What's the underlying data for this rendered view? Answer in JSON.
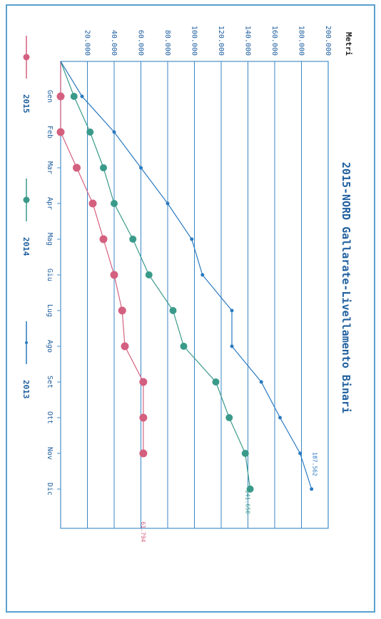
{
  "chart_data": {
    "type": "line",
    "title": "2015-NORD Gallarate-Livellamento Binari",
    "ylabel": "Metri",
    "xlabel": "",
    "categories": [
      "Gen",
      "Feb",
      "Mar",
      "Apr",
      "Mag",
      "Giu",
      "Lug",
      "Ago",
      "Set",
      "Ott",
      "Nov",
      "Dic"
    ],
    "yticks": [
      "20.000",
      "40.000",
      "60.000",
      "80.000",
      "100.000",
      "120.000",
      "140.000",
      "160.000",
      "180.000",
      "200.000"
    ],
    "ylim": [
      0,
      200000
    ],
    "grid": true,
    "legend_position": "bottom",
    "series": [
      {
        "name": "2015",
        "color": "#d4607f",
        "marker": "circle",
        "values": [
          0,
          0,
          12000,
          24000,
          32000,
          40000,
          46000,
          48000,
          61794,
          61794,
          61794,
          null
        ],
        "end_label": "61.794"
      },
      {
        "name": "2014",
        "color": "#3a9a8a",
        "marker": "circle",
        "values": [
          10000,
          22000,
          32000,
          40000,
          54000,
          66000,
          84000,
          92000,
          116000,
          126000,
          138000,
          141650
        ],
        "end_label": "141.650"
      },
      {
        "name": "2013",
        "color": "#2a7ac0",
        "marker": "dot",
        "values": [
          16000,
          40000,
          60000,
          80000,
          98000,
          106000,
          128000,
          128000,
          150000,
          164000,
          179000,
          187562
        ],
        "end_label": "187.562"
      }
    ]
  }
}
